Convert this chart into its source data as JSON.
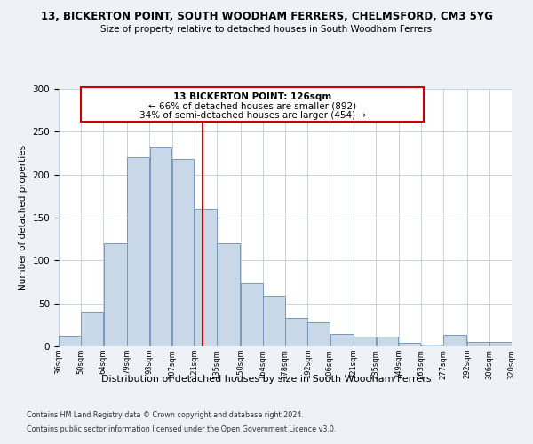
{
  "title": "13, BICKERTON POINT, SOUTH WOODHAM FERRERS, CHELMSFORD, CM3 5YG",
  "subtitle": "Size of property relative to detached houses in South Woodham Ferrers",
  "xlabel": "Distribution of detached houses by size in South Woodham Ferrers",
  "ylabel": "Number of detached properties",
  "bin_edges": [
    36,
    50,
    64,
    79,
    93,
    107,
    121,
    135,
    150,
    164,
    178,
    192,
    206,
    221,
    235,
    249,
    263,
    277,
    292,
    306,
    320
  ],
  "counts": [
    12,
    40,
    120,
    220,
    232,
    218,
    160,
    120,
    73,
    59,
    33,
    28,
    15,
    11,
    11,
    4,
    2,
    13,
    5,
    5
  ],
  "bar_color": "#c8d8e8",
  "bar_edge_color": "#7799bb",
  "vline_x": 126,
  "vline_color": "#cc0000",
  "annotation_box_color": "#cc0000",
  "annotation_line1": "13 BICKERTON POINT: 126sqm",
  "annotation_line2": "← 66% of detached houses are smaller (892)",
  "annotation_line3": "34% of semi-detached houses are larger (454) →",
  "ylim": [
    0,
    300
  ],
  "yticks": [
    0,
    50,
    100,
    150,
    200,
    250,
    300
  ],
  "tick_labels": [
    "36sqm",
    "50sqm",
    "64sqm",
    "79sqm",
    "93sqm",
    "107sqm",
    "121sqm",
    "135sqm",
    "150sqm",
    "164sqm",
    "178sqm",
    "192sqm",
    "206sqm",
    "221sqm",
    "235sqm",
    "249sqm",
    "263sqm",
    "277sqm",
    "292sqm",
    "306sqm",
    "320sqm"
  ],
  "footnote1": "Contains HM Land Registry data © Crown copyright and database right 2024.",
  "footnote2": "Contains public sector information licensed under the Open Government Licence v3.0.",
  "background_color": "#eef2f7",
  "plot_bg_color": "#ffffff"
}
